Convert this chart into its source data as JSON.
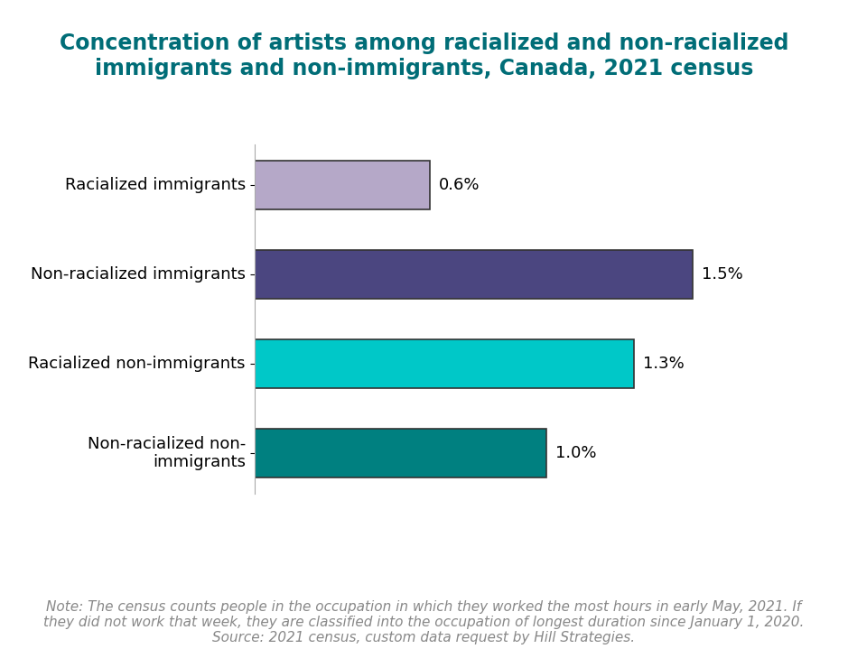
{
  "title": "Concentration of artists among racialized and non-racialized\nimmigrants and non-immigrants, Canada, 2021 census",
  "title_color": "#006d77",
  "title_fontsize": 17,
  "categories": [
    "Racialized immigrants",
    "Non-racialized immigrants",
    "Racialized non-immigrants",
    "Non-racialized non-\nimmigrants"
  ],
  "values": [
    0.6,
    1.5,
    1.3,
    1.0
  ],
  "bar_colors": [
    "#b5a8c8",
    "#4b4680",
    "#00c8c8",
    "#008080"
  ],
  "bar_edge_color": "#333333",
  "bar_edge_width": 1.2,
  "value_labels": [
    "0.6%",
    "1.5%",
    "1.3%",
    "1.0%"
  ],
  "xlim": [
    0,
    1.8
  ],
  "note_line1": "Note: The census counts people in the occupation in which they worked the most hours in early May, 2021. If",
  "note_line2": "they did not work that week, they are classified into the occupation of longest duration since January 1, 2020.",
  "note_line3": "Source: 2021 census, custom data request by Hill Strategies.",
  "note_color": "#888888",
  "note_fontsize": 11,
  "background_color": "#ffffff",
  "bar_height": 0.55,
  "value_label_fontsize": 13,
  "ylabel_fontsize": 13
}
